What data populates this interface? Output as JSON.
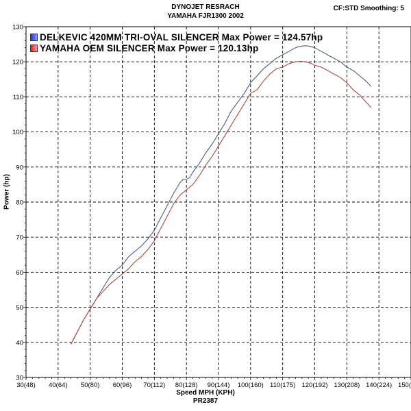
{
  "header": {
    "title": "DYNOJET RESRACH",
    "subtitle": "YAMAHA FJR1300 2002",
    "settings": "CF:STD Smoothing: 5"
  },
  "footer": {
    "xlabel": "Speed MPH (KPH)",
    "run_code": "PR2387"
  },
  "colors": {
    "delkevic": "#4a5a8c",
    "oem": "#b0463a",
    "delkevic_swatch": "#2233dd",
    "oem_swatch": "#dd2222"
  },
  "chart_data": {
    "type": "line",
    "title": "DYNOJET RESRACH",
    "subtitle": "YAMAHA FJR1300 2002",
    "xlabel": "Speed MPH (KPH)",
    "ylabel": "Power (hp)",
    "xlim": [
      30,
      150
    ],
    "ylim": [
      30,
      130
    ],
    "grid": true,
    "legend_position": "top-left",
    "x_ticks": [
      30,
      40,
      50,
      60,
      70,
      80,
      90,
      100,
      110,
      120,
      130,
      140,
      150
    ],
    "x_tick_labels": [
      "30(48)",
      "40(64)",
      "50(80)",
      "60(96)",
      "70(112)",
      "80(128)",
      "90(144)",
      "100(160)",
      "110(175)",
      "120(192)",
      "130(208)",
      "140(224)",
      "150(240)"
    ],
    "y_ticks": [
      30,
      40,
      50,
      60,
      70,
      80,
      90,
      100,
      110,
      120,
      130
    ],
    "series": [
      {
        "name": "DELKEVIC 420MM TRI-OVAL SILENCER Max Power = 124.57hp",
        "x": [
          44.0,
          46,
          48,
          50,
          52,
          54,
          56,
          58,
          60,
          62,
          64,
          66,
          68,
          70,
          72,
          74,
          76,
          77,
          78,
          79,
          80,
          81,
          82,
          84,
          86,
          88,
          90,
          92,
          94,
          96,
          98,
          100,
          102,
          104,
          106,
          108,
          110,
          112,
          113,
          114,
          115,
          116,
          117,
          118,
          119,
          120,
          121,
          122,
          124,
          126,
          128,
          130,
          132,
          134,
          136,
          137.5
        ],
        "y": [
          39.5,
          43,
          46.5,
          49.5,
          52.5,
          55.5,
          58.5,
          60.5,
          62,
          64.5,
          66,
          67.5,
          69.5,
          72,
          75.5,
          79,
          82.5,
          84,
          85.5,
          86.5,
          86.5,
          87,
          88.5,
          91,
          94,
          96.5,
          99.5,
          102.5,
          106,
          108.5,
          111,
          114,
          116,
          118,
          119.5,
          121,
          122,
          123,
          123.5,
          124,
          124.3,
          124.5,
          124.57,
          124.5,
          124.3,
          124,
          123.5,
          123,
          122,
          121,
          120,
          118.5,
          117.5,
          116,
          114.5,
          113
        ]
      },
      {
        "name": "YAMAHA OEM SILENCER Max Power = 120.13hp",
        "x": [
          44.0,
          46,
          48,
          50,
          52,
          54,
          56,
          58,
          60,
          62,
          64,
          66,
          68,
          70,
          72,
          74,
          76,
          78,
          80,
          82,
          84,
          86,
          88,
          90,
          92,
          94,
          96,
          98,
          100,
          102,
          104,
          106,
          108,
          110,
          112,
          114,
          115,
          116,
          117,
          118,
          119,
          120,
          122,
          124,
          126,
          128,
          130,
          132,
          134,
          136,
          137.5
        ],
        "y": [
          39.5,
          43,
          46.5,
          49.5,
          52.5,
          54.5,
          56.5,
          58,
          59.5,
          61,
          63,
          64.5,
          66.5,
          69,
          72.5,
          76,
          79.5,
          82,
          83.5,
          85,
          87.5,
          90.5,
          93,
          96,
          99,
          102,
          105,
          108,
          111,
          112,
          114.5,
          116.5,
          118,
          118.5,
          119.5,
          120,
          120.1,
          120.13,
          120,
          119.8,
          119.5,
          119,
          118.5,
          117.5,
          116.5,
          115.5,
          114,
          112,
          110.5,
          108.5,
          107
        ]
      }
    ]
  }
}
